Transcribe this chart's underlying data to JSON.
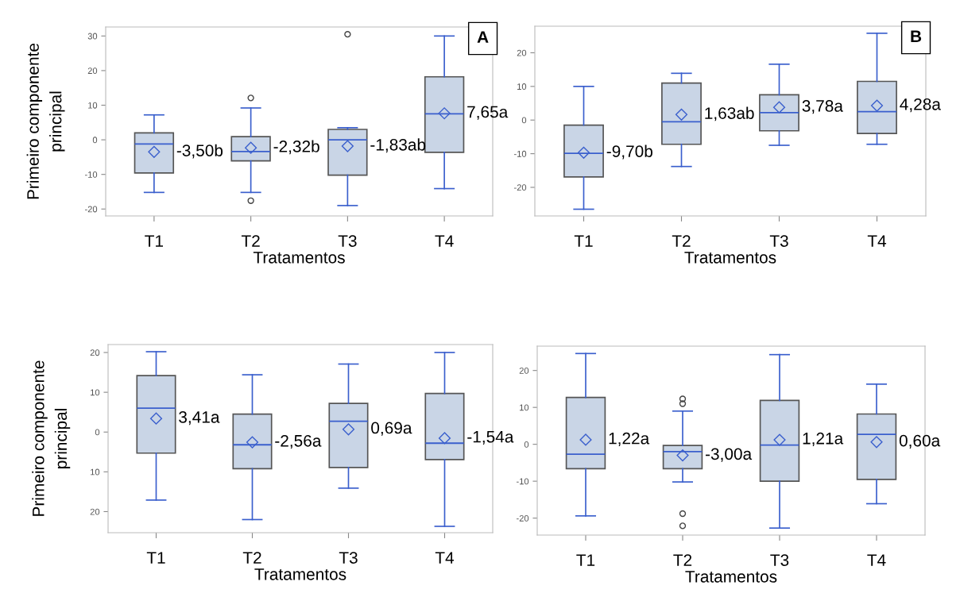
{
  "chart_data": [
    {
      "type": "box",
      "categories": [
        "T1",
        "T2",
        "T3",
        "T4"
      ],
      "xlabel": "Tratamentos",
      "ylabel": "Primeiro componente\nprincipal",
      "ylim": [
        -22,
        32.6
      ],
      "yticks": [
        -20,
        -10,
        0,
        10,
        20,
        30
      ],
      "grid": false,
      "marker": "diamond",
      "series": [
        {
          "color": "#c9d5e6",
          "value_labels": [
            "-3,50b",
            "-2,32b",
            "-1,83ab",
            "7,65a"
          ],
          "boxes": [
            {
              "low": -15.2,
              "q1": -9.6,
              "median": -1.2,
              "q3": 2.0,
              "high": 7.2,
              "mean": -3.5
            },
            {
              "low": -15.2,
              "q1": -6.1,
              "median": -3.4,
              "q3": 0.9,
              "high": 9.2,
              "mean": -2.32,
              "outliers": [
                12.1,
                -17.6
              ]
            },
            {
              "low": -19.0,
              "q1": -10.2,
              "median": 0.0,
              "q3": 3.0,
              "high": 3.5,
              "mean": -1.83,
              "outliers": [
                30.5
              ]
            },
            {
              "low": -14.1,
              "q1": -3.6,
              "median": 7.5,
              "q3": 18.2,
              "high": 30,
              "mean": 7.65
            }
          ]
        }
      ],
      "annotations": [
        "A"
      ]
    },
    {
      "type": "box",
      "categories": [
        "T1",
        "T2",
        "T3",
        "T4"
      ],
      "xlabel": "Tratamentos",
      "ylim": [
        -28.5,
        27.9
      ],
      "yticks": [
        -20,
        -10,
        0,
        10,
        20
      ],
      "grid": false,
      "marker": "diamond",
      "series": [
        {
          "color": "#c9d5e6",
          "value_labels": [
            "-9,70b",
            "1,63ab",
            "3,78a",
            "4,28a"
          ],
          "boxes": [
            {
              "low": -26.5,
              "q1": -16.9,
              "median": -9.9,
              "q3": -1.5,
              "high": 10,
              "mean": -9.7
            },
            {
              "low": -13.8,
              "q1": -7.2,
              "median": -0.5,
              "q3": 11.0,
              "high": 13.9,
              "mean": 1.63
            },
            {
              "low": -7.5,
              "q1": -3.2,
              "median": 2.2,
              "q3": 7.5,
              "high": 16.6,
              "mean": 3.78
            },
            {
              "low": -7.2,
              "q1": -4.0,
              "median": 2.5,
              "q3": 11.5,
              "high": 25.8,
              "mean": 4.28
            }
          ]
        }
      ],
      "annotations": [
        "B"
      ]
    },
    {
      "type": "box",
      "categories": [
        "T1",
        "T2",
        "T3",
        "T4"
      ],
      "xlabel": "Tratamentos",
      "ylabel": "Primeiro componente\nprincipal",
      "ylim": [
        -25.3,
        22.0
      ],
      "yticks": [
        {
          "value": -20,
          "label": "20"
        },
        {
          "value": -10,
          "label": "10"
        },
        0,
        10,
        20
      ],
      "grid": false,
      "marker": "diamond",
      "series": [
        {
          "color": "#c9d5e6",
          "value_labels": [
            "3,41a",
            "-2,56a",
            "0,69a",
            "-1,54a"
          ],
          "boxes": [
            {
              "low": -17.1,
              "q1": -5.3,
              "median": 6.0,
              "q3": 14.2,
              "high": 20.2,
              "mean": 3.41
            },
            {
              "low": -22.0,
              "q1": -9.2,
              "median": -3.2,
              "q3": 4.5,
              "high": 14.4,
              "mean": -2.56
            },
            {
              "low": -14.1,
              "q1": -8.9,
              "median": 2.7,
              "q3": 7.2,
              "high": 17.1,
              "mean": 0.69
            },
            {
              "low": -23.7,
              "q1": -6.9,
              "median": -2.8,
              "q3": 9.7,
              "high": 20.0,
              "mean": -1.54
            }
          ]
        }
      ]
    },
    {
      "type": "box",
      "categories": [
        "T1",
        "T2",
        "T3",
        "T4"
      ],
      "xlabel": "Tratamentos",
      "ylim": [
        -24.6,
        26.6
      ],
      "yticks": [
        -20,
        -10,
        0,
        10,
        20
      ],
      "grid": false,
      "marker": "diamond",
      "series": [
        {
          "color": "#c9d5e6",
          "value_labels": [
            "1,22a",
            "-3,00a",
            "1,21a",
            "0,60a"
          ],
          "boxes": [
            {
              "low": -19.4,
              "q1": -6.6,
              "median": -2.7,
              "q3": 12.7,
              "high": 24.6,
              "mean": 1.22
            },
            {
              "low": -10.2,
              "q1": -6.6,
              "median": -2.0,
              "q3": -0.3,
              "high": 9.0,
              "mean": -3.0,
              "outliers": [
                12.3,
                11.0,
                -18.8,
                -22.1
              ]
            },
            {
              "low": -22.7,
              "q1": -10.0,
              "median": -0.2,
              "q3": 11.9,
              "high": 24.3,
              "mean": 1.21
            },
            {
              "low": -16.1,
              "q1": -9.5,
              "median": 2.7,
              "q3": 8.2,
              "high": 16.3,
              "mean": 0.6
            }
          ]
        }
      ]
    }
  ]
}
